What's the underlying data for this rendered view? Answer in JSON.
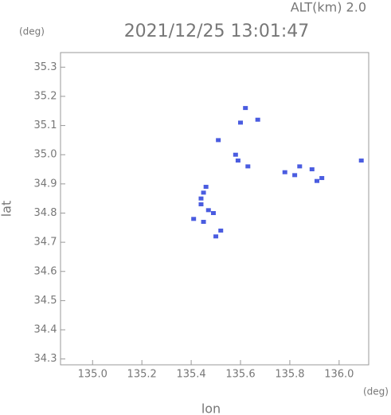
{
  "chart_data": {
    "type": "scatter",
    "title": "2021/12/25 13:01:47",
    "subtitle": "ALT(km) 2.0",
    "y_unit": "(deg)",
    "x_unit": "(deg)",
    "xlabel": "lon",
    "ylabel": "lat",
    "xlim": [
      134.87,
      136.12
    ],
    "ylim": [
      34.28,
      35.35
    ],
    "xticks": [
      {
        "value": 135.0,
        "label": "135.0"
      },
      135.2,
      135.4,
      135.6,
      135.8,
      {
        "value": 136.0,
        "label": "136.0"
      }
    ],
    "yticks": [
      34.3,
      34.4,
      34.5,
      34.6,
      34.7,
      34.8,
      34.9,
      {
        "value": 35.0,
        "label": "35.0"
      },
      35.1,
      35.2,
      35.3
    ],
    "color": "#4a5ce0",
    "x": [
      135.62,
      135.67,
      135.6,
      135.51,
      135.58,
      135.59,
      135.63,
      135.78,
      135.82,
      135.84,
      135.89,
      135.93,
      135.91,
      136.09,
      135.46,
      135.45,
      135.44,
      135.44,
      135.47,
      135.49,
      135.41,
      135.45,
      135.52,
      135.5
    ],
    "y": [
      35.16,
      35.12,
      35.11,
      35.05,
      35.0,
      34.98,
      34.96,
      34.94,
      34.93,
      34.96,
      34.95,
      34.92,
      34.91,
      34.98,
      34.89,
      34.87,
      34.85,
      34.83,
      34.81,
      34.8,
      34.78,
      34.77,
      34.74,
      34.72
    ]
  }
}
